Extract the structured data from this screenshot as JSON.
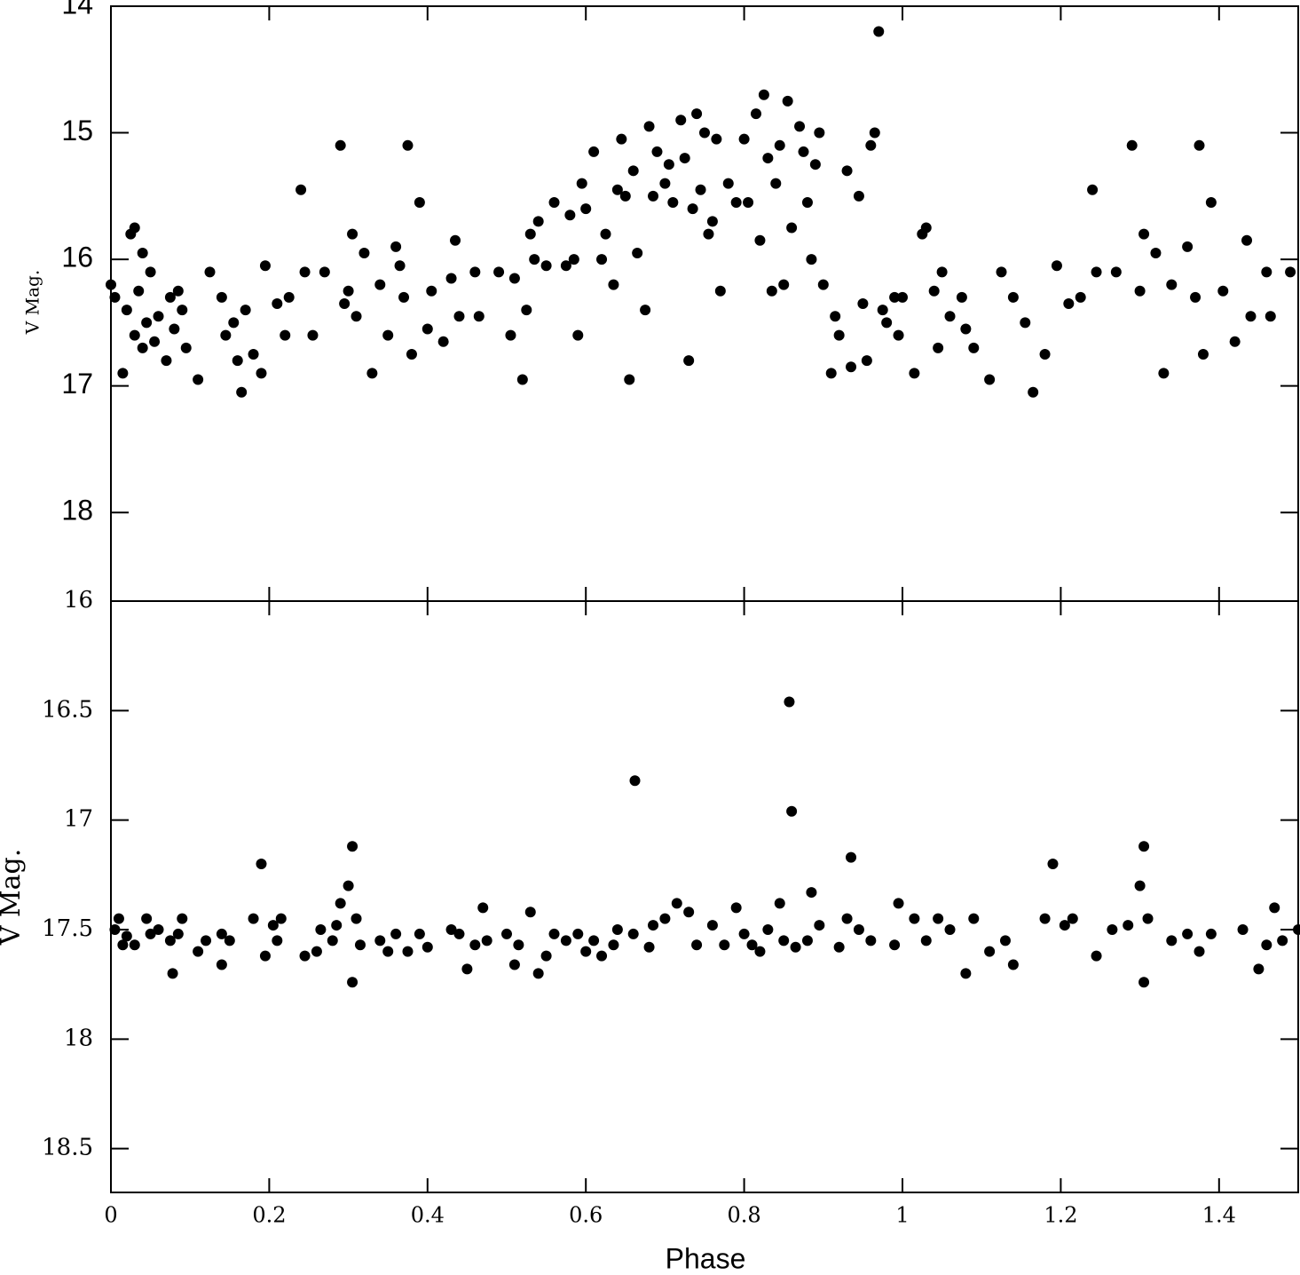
{
  "chart_data": [
    {
      "type": "scatter",
      "ylabel": "V Mag.",
      "color": "#000000",
      "ylim": [
        18.7,
        14
      ],
      "yticks": [
        14,
        15,
        16,
        17,
        18
      ],
      "xlim": [
        0,
        1.5
      ],
      "x": [
        0,
        0.005,
        0.015,
        0.02,
        0.025,
        0.03,
        0.03,
        0.035,
        0.04,
        0.04,
        0.045,
        0.05,
        0.055,
        0.06,
        0.07,
        0.075,
        0.08,
        0.085,
        0.09,
        0.095,
        0.11,
        0.125,
        0.14,
        0.145,
        0.155,
        0.16,
        0.165,
        0.17,
        0.18,
        0.19,
        0.195,
        0.21,
        0.22,
        0.225,
        0.24,
        0.245,
        0.255,
        0.27,
        0.29,
        0.295,
        0.3,
        0.305,
        0.31,
        0.32,
        0.33,
        0.34,
        0.35,
        0.36,
        0.365,
        0.37,
        0.375,
        0.38,
        0.39,
        0.4,
        0.405,
        0.42,
        0.43,
        0.435,
        0.44,
        0.46,
        0.465,
        0.49,
        0.505,
        0.51,
        0.52,
        0.525,
        0.53,
        0.535,
        0.54,
        0.55,
        0.56,
        0.575,
        0.58,
        0.585,
        0.59,
        0.595,
        0.6,
        0.61,
        0.62,
        0.625,
        0.635,
        0.64,
        0.645,
        0.65,
        0.655,
        0.66,
        0.665,
        0.675,
        0.68,
        0.685,
        0.69,
        0.7,
        0.705,
        0.71,
        0.72,
        0.725,
        0.73,
        0.735,
        0.74,
        0.745,
        0.75,
        0.755,
        0.76,
        0.765,
        0.77,
        0.78,
        0.79,
        0.8,
        0.805,
        0.815,
        0.82,
        0.825,
        0.83,
        0.835,
        0.84,
        0.845,
        0.85,
        0.855,
        0.86,
        0.87,
        0.875,
        0.88,
        0.885,
        0.89,
        0.895,
        0.9,
        0.91,
        0.915,
        0.92,
        0.93,
        0.935,
        0.945,
        0.95,
        0.955,
        0.96,
        0.965,
        0.97,
        0.975,
        0.98,
        0.99,
        0.995,
        1.0,
        1.015,
        1.025,
        1.03,
        1.04,
        1.045,
        1.05,
        1.06,
        1.075,
        1.08,
        1.09,
        1.11,
        1.125,
        1.14,
        1.155,
        1.165,
        1.18,
        1.195,
        1.21,
        1.225,
        1.24,
        1.245,
        1.27,
        1.29,
        1.3,
        1.305,
        1.32,
        1.33,
        1.34,
        1.36,
        1.37,
        1.375,
        1.38,
        1.39,
        1.405,
        1.42,
        1.435,
        1.44,
        1.46,
        1.465,
        1.49
      ],
      "values": [
        16.2,
        16.3,
        16.9,
        16.4,
        15.8,
        15.75,
        16.6,
        16.25,
        15.95,
        16.7,
        16.5,
        16.1,
        16.65,
        16.45,
        16.8,
        16.3,
        16.55,
        16.25,
        16.4,
        16.7,
        16.95,
        16.1,
        16.3,
        16.6,
        16.5,
        16.8,
        17.05,
        16.4,
        16.75,
        16.9,
        16.05,
        16.35,
        16.6,
        16.3,
        15.45,
        16.1,
        16.6,
        16.1,
        15.1,
        16.35,
        16.25,
        15.8,
        16.45,
        15.95,
        16.9,
        16.2,
        16.6,
        15.9,
        16.05,
        16.3,
        15.1,
        16.75,
        15.55,
        16.55,
        16.25,
        16.65,
        16.15,
        15.85,
        16.45,
        16.1,
        16.45,
        16.1,
        16.6,
        16.15,
        16.95,
        16.4,
        15.8,
        16.0,
        15.7,
        16.05,
        15.55,
        16.05,
        15.65,
        16.0,
        16.6,
        15.4,
        15.6,
        15.15,
        16.0,
        15.8,
        16.2,
        15.45,
        15.05,
        15.5,
        16.95,
        15.3,
        15.95,
        16.4,
        14.95,
        15.5,
        15.15,
        15.4,
        15.25,
        15.55,
        14.9,
        15.2,
        16.8,
        15.6,
        14.85,
        15.45,
        15.0,
        15.8,
        15.7,
        15.05,
        16.25,
        15.4,
        15.55,
        15.05,
        15.55,
        14.85,
        15.85,
        14.7,
        15.2,
        16.25,
        15.4,
        15.1,
        16.2,
        14.75,
        15.75,
        14.95,
        15.15,
        15.55,
        16.0,
        15.25,
        15.0,
        16.2,
        16.9,
        16.45,
        16.6,
        15.3,
        16.85,
        15.5,
        16.35,
        16.8,
        15.1,
        15.0,
        14.2,
        16.4,
        16.5,
        16.3,
        16.6,
        16.3,
        16.9,
        15.8,
        15.75,
        16.25,
        16.7,
        16.1,
        16.45,
        16.3,
        16.55,
        16.7,
        16.95,
        16.1,
        16.3,
        16.5,
        17.05,
        16.75,
        16.05,
        16.35,
        16.3,
        15.45,
        16.1,
        16.1,
        15.1,
        16.25,
        15.8,
        15.95,
        16.9,
        16.2,
        15.9,
        16.3,
        15.1,
        16.75,
        15.55,
        16.25,
        16.65,
        15.85,
        16.45,
        16.1,
        16.45,
        16.1
      ]
    },
    {
      "type": "scatter",
      "ylabel": "V Mag.",
      "xlabel": "Phase",
      "color": "#000000",
      "ylim": [
        18.7,
        16
      ],
      "yticks": [
        16,
        16.5,
        17,
        17.5,
        18,
        18.5
      ],
      "xlim": [
        0,
        1.5
      ],
      "xticks": [
        0,
        0.2,
        0.4,
        0.6,
        0.8,
        1,
        1.2,
        1.4
      ],
      "x": [
        0.005,
        0.01,
        0.015,
        0.02,
        0.03,
        0.045,
        0.05,
        0.06,
        0.075,
        0.078,
        0.085,
        0.09,
        0.11,
        0.12,
        0.14,
        0.14,
        0.15,
        0.18,
        0.19,
        0.195,
        0.205,
        0.21,
        0.215,
        0.245,
        0.26,
        0.265,
        0.28,
        0.285,
        0.29,
        0.3,
        0.305,
        0.305,
        0.31,
        0.315,
        0.34,
        0.35,
        0.36,
        0.375,
        0.39,
        0.4,
        0.43,
        0.44,
        0.45,
        0.46,
        0.47,
        0.475,
        0.5,
        0.51,
        0.515,
        0.53,
        0.54,
        0.55,
        0.56,
        0.575,
        0.59,
        0.6,
        0.61,
        0.62,
        0.635,
        0.64,
        0.66,
        0.662,
        0.68,
        0.685,
        0.7,
        0.715,
        0.73,
        0.74,
        0.76,
        0.775,
        0.79,
        0.8,
        0.81,
        0.82,
        0.83,
        0.845,
        0.85,
        0.857,
        0.86,
        0.865,
        0.88,
        0.885,
        0.895,
        0.92,
        0.93,
        0.935,
        0.945,
        0.96,
        0.99,
        0.995,
        1.015,
        1.03,
        1.045,
        1.06,
        1.08,
        1.09,
        1.11,
        1.13,
        1.14,
        1.18,
        1.19,
        1.205,
        1.215,
        1.245,
        1.265,
        1.285,
        1.3,
        1.305,
        1.305,
        1.31,
        1.34,
        1.36,
        1.375,
        1.39,
        1.43,
        1.45,
        1.46,
        1.47,
        1.48,
        1.5
      ],
      "values": [
        17.5,
        17.45,
        17.57,
        17.53,
        17.57,
        17.45,
        17.52,
        17.5,
        17.55,
        17.7,
        17.52,
        17.45,
        17.6,
        17.55,
        17.52,
        17.66,
        17.55,
        17.45,
        17.2,
        17.62,
        17.48,
        17.55,
        17.45,
        17.62,
        17.6,
        17.5,
        17.55,
        17.48,
        17.38,
        17.3,
        17.12,
        17.74,
        17.45,
        17.57,
        17.55,
        17.6,
        17.52,
        17.6,
        17.52,
        17.58,
        17.5,
        17.52,
        17.68,
        17.57,
        17.4,
        17.55,
        17.52,
        17.66,
        17.57,
        17.42,
        17.7,
        17.62,
        17.52,
        17.55,
        17.52,
        17.6,
        17.55,
        17.62,
        17.57,
        17.5,
        17.52,
        16.82,
        17.58,
        17.48,
        17.45,
        17.38,
        17.42,
        17.57,
        17.48,
        17.57,
        17.4,
        17.52,
        17.57,
        17.6,
        17.5,
        17.38,
        17.55,
        16.46,
        16.96,
        17.58,
        17.55,
        17.33,
        17.48,
        17.58,
        17.45,
        17.17,
        17.5,
        17.55,
        17.57,
        17.38,
        17.45,
        17.55,
        17.45,
        17.5,
        17.7,
        17.45,
        17.6,
        17.55,
        17.66,
        17.45,
        17.2,
        17.48,
        17.45,
        17.62,
        17.5,
        17.48,
        17.3,
        17.12,
        17.74,
        17.45,
        17.55,
        17.52,
        17.6,
        17.52,
        17.5,
        17.68,
        17.57,
        17.4,
        17.55,
        17.5
      ]
    }
  ]
}
